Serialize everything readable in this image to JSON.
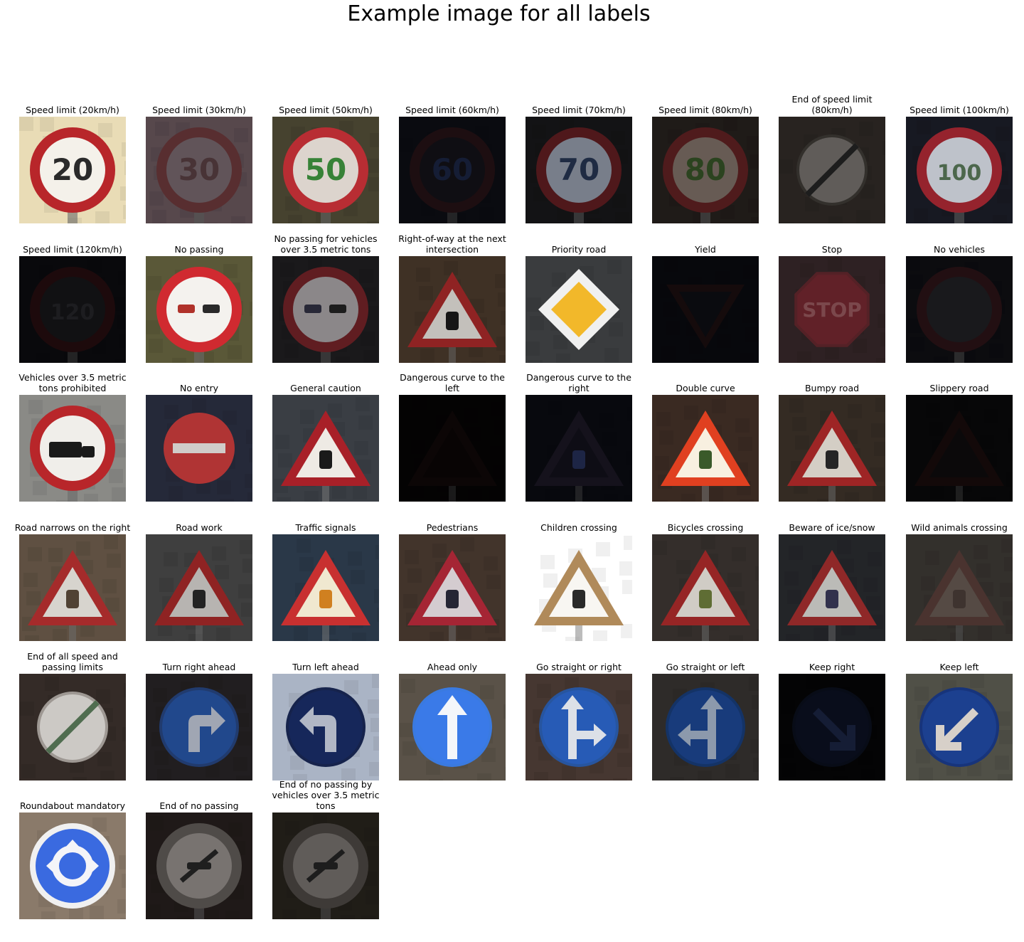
{
  "title": "Example image for all labels",
  "labels": [
    "Speed limit (20km/h)",
    "Speed limit (30km/h)",
    "Speed limit (50km/h)",
    "Speed limit (60km/h)",
    "Speed limit (70km/h)",
    "Speed limit (80km/h)",
    "End of speed limit\n(80km/h)",
    "Speed limit (100km/h)",
    "Speed limit (120km/h)",
    "No passing",
    "No passing for vehicles\nover 3.5 metric tons",
    "Right-of-way at the next\nintersection",
    "Priority road",
    "Yield",
    "Stop",
    "No vehicles",
    "Vehicles over 3.5 metric\ntons prohibited",
    "No entry",
    "General caution",
    "Dangerous curve to the\nleft",
    "Dangerous curve to the\nright",
    "Double curve",
    "Bumpy road",
    "Slippery road",
    "Road narrows on the right",
    "Road work",
    "Traffic signals",
    "Pedestrians",
    "Children crossing",
    "Bicycles crossing",
    "Beware of ice/snow",
    "Wild animals crossing",
    "End of all speed and\npassing limits",
    "Turn right ahead",
    "Turn left ahead",
    "Ahead only",
    "Go straight or right",
    "Go straight or left",
    "Keep right",
    "Keep left",
    "Roundabout mandatory",
    "End of no passing",
    "End of no passing by\nvehicles over 3.5 metric\ntons"
  ],
  "signs": [
    {
      "shape": "circle",
      "ring": "#b8262a",
      "face": "#f4f1ea",
      "bg": "#e9dcb6",
      "fg": "#2a2a2a",
      "text": "20",
      "dim": 1.0
    },
    {
      "shape": "circle",
      "ring": "#6e3a3c",
      "face": "#7a6a70",
      "bg": "#6d5a60",
      "fg": "#5a4044",
      "text": "30",
      "dim": 0.8
    },
    {
      "shape": "circle",
      "ring": "#c23036",
      "face": "#e8e0d8",
      "bg": "#4a4632",
      "fg": "#3a8a3a",
      "text": "50",
      "dim": 0.95
    },
    {
      "shape": "circle",
      "ring": "#3a1c22",
      "face": "#1e1c26",
      "bg": "#151720",
      "fg": "#2a3a6a",
      "text": "60",
      "dim": 0.5
    },
    {
      "shape": "circle",
      "ring": "#6a2024",
      "face": "#a0a8b8",
      "bg": "#1a1a1c",
      "fg": "#2a3a5a",
      "text": "70",
      "dim": 0.75
    },
    {
      "shape": "circle",
      "ring": "#6a2426",
      "face": "#8a7a70",
      "bg": "#2a2420",
      "fg": "#3a5a2a",
      "text": "80",
      "dim": 0.75
    },
    {
      "shape": "endlimit",
      "ring": "#4a4540",
      "face": "#8a8580",
      "bg": "#3a332e",
      "fg": "#2a2a2a",
      "text": "",
      "dim": 0.7
    },
    {
      "shape": "circle",
      "ring": "#b02a36",
      "face": "#e0e4ee",
      "bg": "#1c1e28",
      "fg": "#5a7a5a",
      "text": "100",
      "dim": 0.85
    },
    {
      "shape": "circle",
      "ring": "#3a1418",
      "face": "#222226",
      "bg": "#121318",
      "fg": "#3a3a40",
      "text": "120",
      "dim": 0.5
    },
    {
      "shape": "nopass",
      "ring": "#d02a30",
      "face": "#f4f2ee",
      "bg": "#5a5838",
      "fg": "#b0322a",
      "text": "",
      "dim": 1.0
    },
    {
      "shape": "nopass",
      "ring": "#8a2a30",
      "face": "#c8c2c4",
      "bg": "#262428",
      "fg": "#3a3a50",
      "text": "",
      "dim": 0.7
    },
    {
      "shape": "triangle",
      "ring": "#a82a2a",
      "face": "#e6e2dc",
      "bg": "#4a3a2c",
      "fg": "#1a1a1a",
      "text": "",
      "dim": 0.85
    },
    {
      "shape": "diamond",
      "ring": "#f0f0f0",
      "face": "#f2b82a",
      "bg": "#3a3c3e",
      "fg": "#f2b82a",
      "text": "",
      "dim": 1.0
    },
    {
      "shape": "yield",
      "ring": "#2a1618",
      "face": "#14161e",
      "bg": "#0f1018",
      "fg": "#14161e",
      "text": "",
      "dim": 0.5
    },
    {
      "shape": "octagon",
      "ring": "#6a2a30",
      "face": "#7a2a32",
      "bg": "#3a2a2c",
      "fg": "#9a5a60",
      "text": "STOP",
      "dim": 0.8
    },
    {
      "shape": "circle",
      "ring": "#3a1a1e",
      "face": "#2a2a30",
      "bg": "#14141a",
      "fg": "#2a2a30",
      "text": "",
      "dim": 0.6
    },
    {
      "shape": "truck",
      "ring": "#b8262a",
      "face": "#f0eeea",
      "bg": "#8a8a86",
      "fg": "#1a1a1a",
      "text": "",
      "dim": 1.0
    },
    {
      "shape": "noentry",
      "ring": "#b83a3a",
      "face": "#c43a3a",
      "bg": "#2a2e40",
      "fg": "#e8e4e0",
      "text": "",
      "dim": 0.9
    },
    {
      "shape": "triangle",
      "ring": "#a82028",
      "face": "#eeeae4",
      "bg": "#3a3e44",
      "fg": "#1a1a1a",
      "text": "",
      "dim": 1.0
    },
    {
      "shape": "triangle",
      "ring": "#1e1010",
      "face": "#140c0c",
      "bg": "#0c0809",
      "fg": "#140c0c",
      "text": "",
      "dim": 0.4
    },
    {
      "shape": "triangle",
      "ring": "#2a2438",
      "face": "#1c1a2a",
      "bg": "#10121c",
      "fg": "#3a4a8a",
      "text": "",
      "dim": 0.5
    },
    {
      "shape": "triangle",
      "ring": "#e04020",
      "face": "#f8f0e0",
      "bg": "#3a2a22",
      "fg": "#3a5a2a",
      "text": "",
      "dim": 1.0
    },
    {
      "shape": "triangle",
      "ring": "#b02a2a",
      "face": "#ece6dc",
      "bg": "#3a3028",
      "fg": "#2a2a2a",
      "text": "",
      "dim": 0.9
    },
    {
      "shape": "triangle",
      "ring": "#2a1414",
      "face": "#1a1618",
      "bg": "#101012",
      "fg": "#1a1618",
      "text": "",
      "dim": 0.45
    },
    {
      "shape": "triangle",
      "ring": "#b83030",
      "face": "#f0ece6",
      "bg": "#6a5a4a",
      "fg": "#5a4a3a",
      "text": "",
      "dim": 0.9
    },
    {
      "shape": "triangle",
      "ring": "#a82a2a",
      "face": "#d8d4d0",
      "bg": "#4a4a4a",
      "fg": "#2a2a2a",
      "text": "",
      "dim": 0.85
    },
    {
      "shape": "triangle",
      "ring": "#c83030",
      "face": "#f0e8d0",
      "bg": "#2a3848",
      "fg": "#d08020",
      "text": "",
      "dim": 1.0
    },
    {
      "shape": "triangle",
      "ring": "#b82a3a",
      "face": "#ece4e8",
      "bg": "#4a3a30",
      "fg": "#2a2a3a",
      "text": "",
      "dim": 0.9
    },
    {
      "shape": "triangle",
      "ring": "#b08a5a",
      "face": "#f8f6f2",
      "bg": "#ffffff",
      "fg": "#2a2a2a",
      "text": "",
      "dim": 1.0
    },
    {
      "shape": "triangle",
      "ring": "#a82a2a",
      "face": "#e8e4dc",
      "bg": "#3a3430",
      "fg": "#6a7a3a",
      "text": "",
      "dim": 0.9
    },
    {
      "shape": "triangle",
      "ring": "#a83030",
      "face": "#dcdcd8",
      "bg": "#2a2c30",
      "fg": "#3a3a5a",
      "text": "",
      "dim": 0.85
    },
    {
      "shape": "triangle",
      "ring": "#6a4a44",
      "face": "#7a6a62",
      "bg": "#4a4540",
      "fg": "#5a4a44",
      "text": "",
      "dim": 0.7
    },
    {
      "shape": "endall",
      "ring": "#b0aaa4",
      "face": "#e4e0dc",
      "bg": "#3a302c",
      "fg": "#5a7a5a",
      "text": "",
      "dim": 0.9
    },
    {
      "shape": "bluearrow",
      "ring": "#2a4a8a",
      "face": "#2a5ab0",
      "bg": "#2a2628",
      "fg": "#c8d0e0",
      "text": "right",
      "dim": 0.8
    },
    {
      "shape": "bluearrow",
      "ring": "#1a2a5a",
      "face": "#1a2e6a",
      "bg": "#c8d4e8",
      "fg": "#d0d8e8",
      "text": "left",
      "dim": 0.85
    },
    {
      "shape": "bluearrow",
      "ring": "#3a7ae0",
      "face": "#3a7ae8",
      "bg": "#5a5248",
      "fg": "#f4f6fa",
      "text": "up",
      "dim": 1.0
    },
    {
      "shape": "bluearrow",
      "ring": "#2a5aa8",
      "face": "#2a60c0",
      "bg": "#4a3a34",
      "fg": "#e8ecf4",
      "text": "upright",
      "dim": 0.95
    },
    {
      "shape": "bluearrow",
      "ring": "#1a4080",
      "face": "#1e4a9a",
      "bg": "#3a3634",
      "fg": "#b0c0d8",
      "text": "upleft",
      "dim": 0.8
    },
    {
      "shape": "bluearrow",
      "ring": "#10182e",
      "face": "#121a36",
      "bg": "#08080a",
      "fg": "#2a3a6a",
      "text": "downright",
      "dim": 0.5
    },
    {
      "shape": "bluearrow",
      "ring": "#1a3a8a",
      "face": "#2048a0",
      "bg": "#5a5a50",
      "fg": "#f0e8e0",
      "text": "downleft",
      "dim": 0.9
    },
    {
      "shape": "roundabout",
      "ring": "#f0f0f0",
      "face": "#3a6ae0",
      "bg": "#8a7a6a",
      "fg": "#f4f4f8",
      "text": "",
      "dim": 1.0
    },
    {
      "shape": "endnopass",
      "ring": "#6a6460",
      "face": "#a09a96",
      "bg": "#2a2220",
      "fg": "#2a2a2a",
      "text": "",
      "dim": 0.75
    },
    {
      "shape": "endnopass",
      "ring": "#5a5450",
      "face": "#8a8480",
      "bg": "#2e2a22",
      "fg": "#2a2a2a",
      "text": "",
      "dim": 0.7
    }
  ]
}
